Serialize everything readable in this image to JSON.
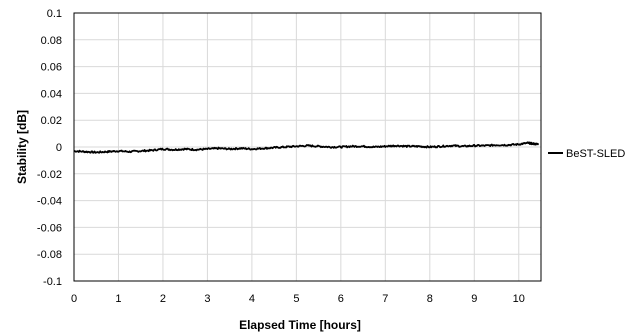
{
  "chart_data": {
    "type": "line",
    "title": "",
    "xlabel": "Elapsed Time [hours]",
    "ylabel": "Stability  [dB]",
    "xlim": [
      0,
      10.5
    ],
    "ylim": [
      -0.1,
      0.1
    ],
    "x_ticks": [
      0,
      1,
      2,
      3,
      4,
      5,
      6,
      7,
      8,
      9,
      10
    ],
    "x_tick_labels": [
      "0",
      "1",
      "2",
      "3",
      "4",
      "5",
      "6",
      "7",
      "8",
      "9",
      "10"
    ],
    "y_ticks": [
      0.1,
      0.08,
      0.06,
      0.04,
      0.02,
      0,
      -0.02,
      -0.04,
      -0.06,
      -0.08,
      -0.1
    ],
    "y_tick_labels": [
      "0.1",
      "0.08",
      "0.06",
      "0.04",
      "0.02",
      "0",
      "-0.02",
      "-0.04",
      "-0.06",
      "-0.08",
      "-0.1"
    ],
    "grid": true,
    "legend_position": "right",
    "colors": {
      "series": "#000000",
      "grid": "#d9d9d9",
      "axis": "#000000"
    },
    "series": [
      {
        "name": "BeST-SLED",
        "x": [
          0,
          0.25,
          0.5,
          0.75,
          1.0,
          1.25,
          1.5,
          1.75,
          2.0,
          2.25,
          2.5,
          2.75,
          3.0,
          3.25,
          3.5,
          3.75,
          4.0,
          4.25,
          4.5,
          4.75,
          5.0,
          5.25,
          5.5,
          5.75,
          6.0,
          6.25,
          6.5,
          6.75,
          7.0,
          7.25,
          7.5,
          7.75,
          8.0,
          8.25,
          8.5,
          8.75,
          9.0,
          9.25,
          9.5,
          9.75,
          10.0,
          10.2,
          10.3,
          10.45
        ],
        "values": [
          -0.003,
          -0.0035,
          -0.004,
          -0.0035,
          -0.003,
          -0.0035,
          -0.003,
          -0.0025,
          -0.0015,
          -0.002,
          -0.0015,
          -0.002,
          -0.0015,
          -0.001,
          -0.0015,
          -0.001,
          -0.0015,
          -0.001,
          -0.0005,
          0.0,
          0.0005,
          0.001,
          0.0005,
          0.0,
          0.0,
          0.0005,
          0.0005,
          0.0,
          0.0005,
          0.001,
          0.0005,
          0.0005,
          0.0,
          0.0005,
          0.001,
          0.0005,
          0.001,
          0.001,
          0.0015,
          0.0015,
          0.002,
          0.003,
          0.0025,
          0.002
        ]
      }
    ]
  }
}
